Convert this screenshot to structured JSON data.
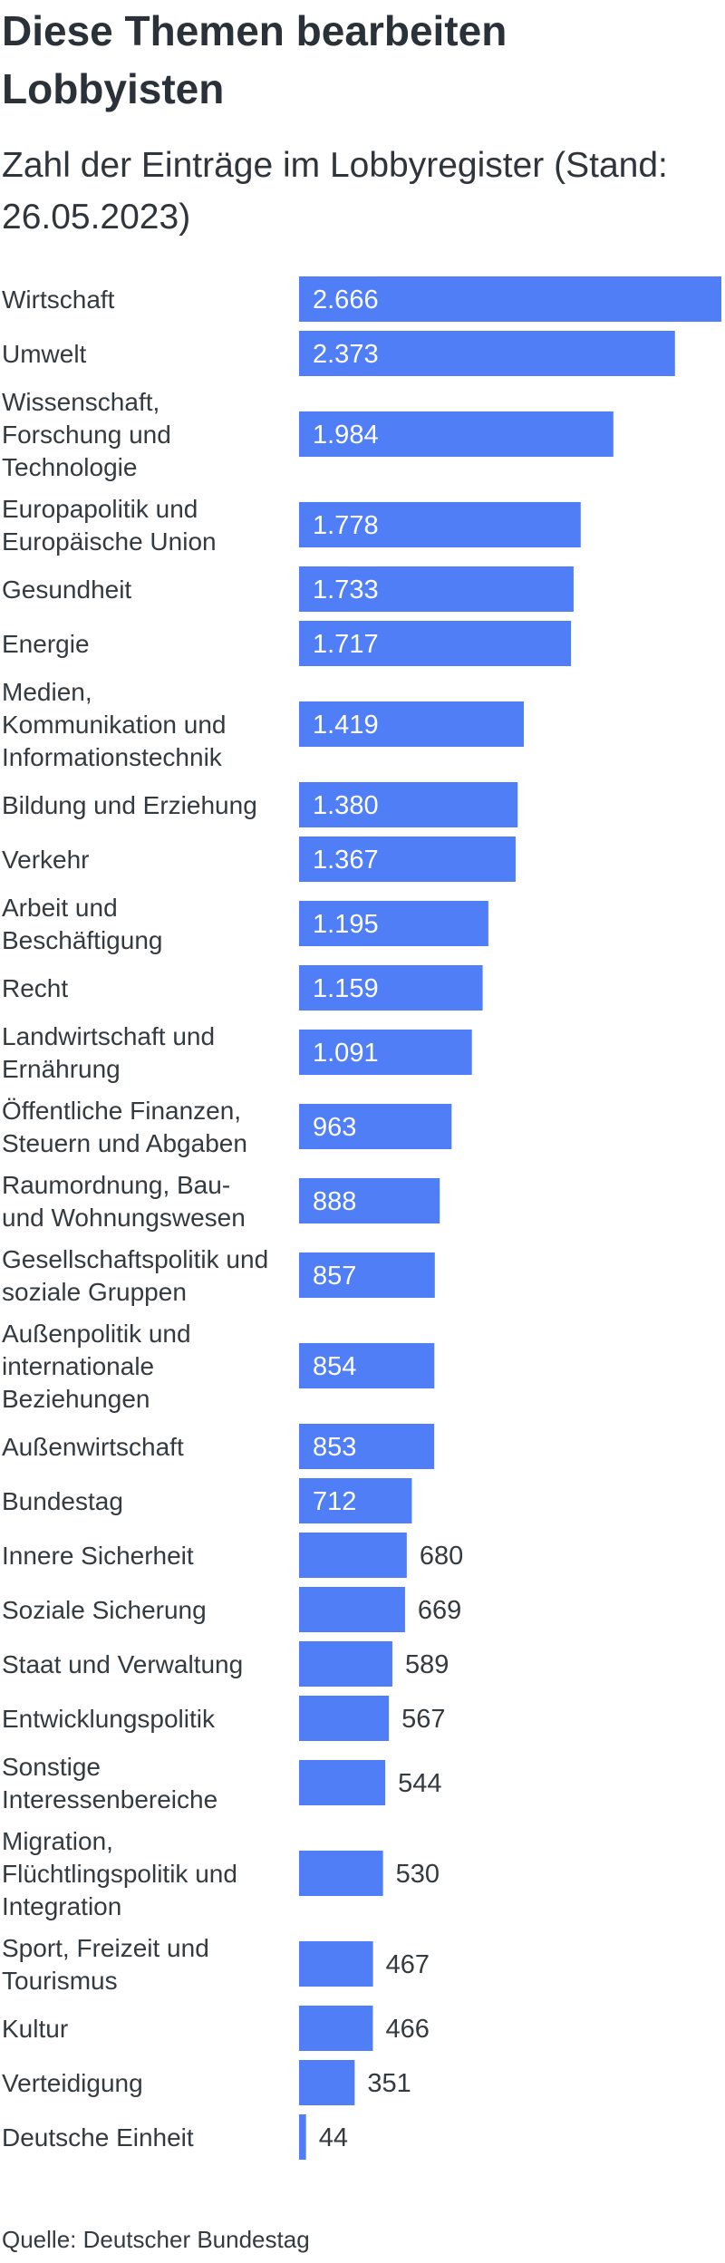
{
  "title": "Diese Themen bearbeiten Lobbyisten",
  "subtitle": "Zahl der Einträge im Lobbyregister (Stand: 26.05.2023)",
  "source": "Quelle: Deutscher Bundestag",
  "colors": {
    "bar": "#4f7ef7",
    "label_inside": "#ffffff",
    "label_outside": "#333a40"
  },
  "chart_data": {
    "type": "bar",
    "orientation": "horizontal",
    "categories": [
      "Wirtschaft",
      "Umwelt",
      "Wissenschaft, Forschung und Technologie",
      "Europapolitik und Europäische Union",
      "Gesundheit",
      "Energie",
      "Medien, Kommunikation und Informationstechnik",
      "Bildung und Erziehung",
      "Verkehr",
      "Arbeit und Beschäftigung",
      "Recht",
      "Landwirtschaft und Ernährung",
      "Öffentliche Finanzen, Steuern und Abgaben",
      "Raumordnung, Bau- und Wohnungswesen",
      "Gesellschaftspolitik und soziale Gruppen",
      "Außenpolitik und internationale Beziehungen",
      "Außenwirtschaft",
      "Bundestag",
      "Innere Sicherheit",
      "Soziale Sicherung",
      "Staat und Verwaltung",
      "Entwicklungspolitik",
      "Sonstige Interessenbereiche",
      "Migration, Flüchtlingspolitik und Integration",
      "Sport, Freizeit und Tourismus",
      "Kultur",
      "Verteidigung",
      "Deutsche Einheit"
    ],
    "values": [
      2666,
      2373,
      1984,
      1778,
      1733,
      1717,
      1419,
      1380,
      1367,
      1195,
      1159,
      1091,
      963,
      888,
      857,
      854,
      853,
      712,
      680,
      669,
      589,
      567,
      544,
      530,
      467,
      466,
      351,
      44
    ],
    "data_labels": [
      "2.666",
      "2.373",
      "1.984",
      "1.778",
      "1.733",
      "1.717",
      "1.419",
      "1.380",
      "1.367",
      "1.195",
      "1.159",
      "1.091",
      "963",
      "888",
      "857",
      "854",
      "853",
      "712",
      "680",
      "669",
      "589",
      "567",
      "544",
      "530",
      "467",
      "466",
      "351",
      "44"
    ],
    "xlim": [
      0,
      2666
    ],
    "grid": false,
    "legend": "none"
  }
}
